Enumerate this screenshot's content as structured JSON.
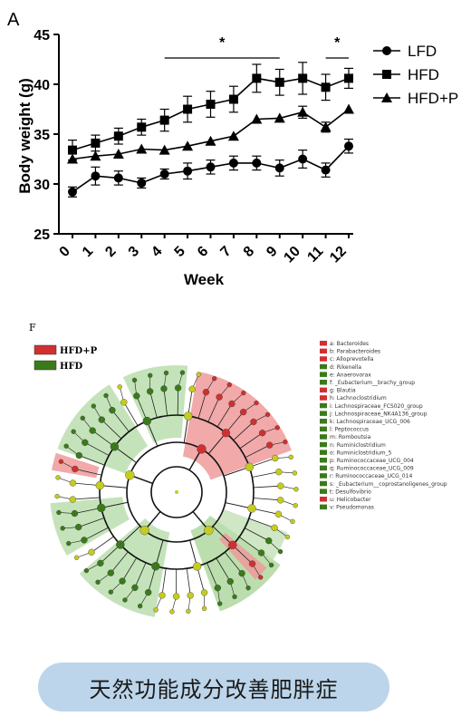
{
  "panel_a": {
    "letter": "A",
    "chart_data": {
      "type": "line",
      "xlabel": "Week",
      "ylabel": "Body weight (g)",
      "x": [
        0,
        1,
        2,
        3,
        4,
        5,
        6,
        7,
        8,
        9,
        10,
        11,
        12
      ],
      "ylim": [
        25,
        45
      ],
      "yticks": [
        25,
        30,
        35,
        40,
        45
      ],
      "grid": false,
      "legend_position": "top-right",
      "series": [
        {
          "name": "LFD",
          "marker": "circle",
          "values": [
            29.2,
            30.8,
            30.6,
            30.1,
            31.0,
            31.3,
            31.7,
            32.1,
            32.1,
            31.6,
            32.5,
            31.4,
            33.8
          ],
          "errors": [
            0.5,
            0.9,
            0.7,
            0.5,
            0.5,
            0.8,
            0.7,
            0.7,
            0.7,
            0.8,
            0.9,
            0.7,
            0.7
          ]
        },
        {
          "name": "HFD",
          "marker": "square",
          "values": [
            33.4,
            34.1,
            34.8,
            35.7,
            36.4,
            37.5,
            38.0,
            38.5,
            40.6,
            40.2,
            40.6,
            39.7,
            40.6
          ],
          "errors": [
            1.0,
            0.8,
            0.8,
            0.8,
            1.1,
            1.3,
            1.3,
            1.3,
            1.4,
            1.3,
            1.6,
            1.3,
            1.0
          ]
        },
        {
          "name": "HFD+P",
          "marker": "triangle",
          "values": [
            32.5,
            32.8,
            33.0,
            33.5,
            33.4,
            33.8,
            34.3,
            34.8,
            36.5,
            36.6,
            37.2,
            35.7,
            37.5
          ],
          "errors": [
            0,
            0,
            0,
            0,
            0,
            0,
            0,
            0,
            0,
            0,
            0.6,
            0.5,
            0
          ]
        }
      ],
      "annotations": [
        {
          "text": "*",
          "from_week": 4,
          "to_week": 9
        },
        {
          "text": "*",
          "from_week": 11,
          "to_week": 12
        }
      ]
    }
  },
  "panel_f": {
    "letter": "F",
    "legend": [
      {
        "label": "HFD+P",
        "color": "#d03030"
      },
      {
        "label": "HFD",
        "color": "#3a7a1a"
      }
    ],
    "taxa": [
      {
        "label": "a: Bacteroides",
        "group": "HFD+P"
      },
      {
        "label": "b: Parabacteroides",
        "group": "HFD+P"
      },
      {
        "label": "c: Alloprevotella",
        "group": "HFD+P"
      },
      {
        "label": "d: Rikenella",
        "group": "HFD"
      },
      {
        "label": "e: Anaerovorax",
        "group": "HFD"
      },
      {
        "label": "f: _Eubacterium__brachy_group",
        "group": "HFD"
      },
      {
        "label": "g: Blautia",
        "group": "HFD+P"
      },
      {
        "label": "h: Lachnoclostridium",
        "group": "HFD+P"
      },
      {
        "label": "i: Lachnospiraceae_FCS020_group",
        "group": "HFD"
      },
      {
        "label": "j: Lachnospiraceae_NK4A136_group",
        "group": "HFD"
      },
      {
        "label": "k: Lachnospiraceae_UCG_006",
        "group": "HFD"
      },
      {
        "label": "l: Peptococcus",
        "group": "HFD"
      },
      {
        "label": "m: Romboutsia",
        "group": "HFD"
      },
      {
        "label": "n: Ruminiclostridium",
        "group": "HFD"
      },
      {
        "label": "o: Ruminiclostridium_5",
        "group": "HFD"
      },
      {
        "label": "p: Ruminococcaceae_UCG_004",
        "group": "HFD"
      },
      {
        "label": "q: Ruminococcaceae_UCG_009",
        "group": "HFD"
      },
      {
        "label": "r: Ruminococcaceae_UCG_014",
        "group": "HFD"
      },
      {
        "label": "s: _Eubacterium__coprostanoligenes_group",
        "group": "HFD"
      },
      {
        "label": "t: Desulfovibrio",
        "group": "HFD"
      },
      {
        "label": "u: Helicobacter",
        "group": "HFD+P"
      },
      {
        "label": "v: Pseudomonas",
        "group": "HFD"
      }
    ],
    "colors": {
      "hfdp": "#d03030",
      "hfd": "#3a7a1a",
      "node": "#c4cc1e",
      "hfdp_zone": "#ee9a9a",
      "hfd_zone": "#9fd08c"
    }
  },
  "caption": "天然功能成分改善肥胖症"
}
